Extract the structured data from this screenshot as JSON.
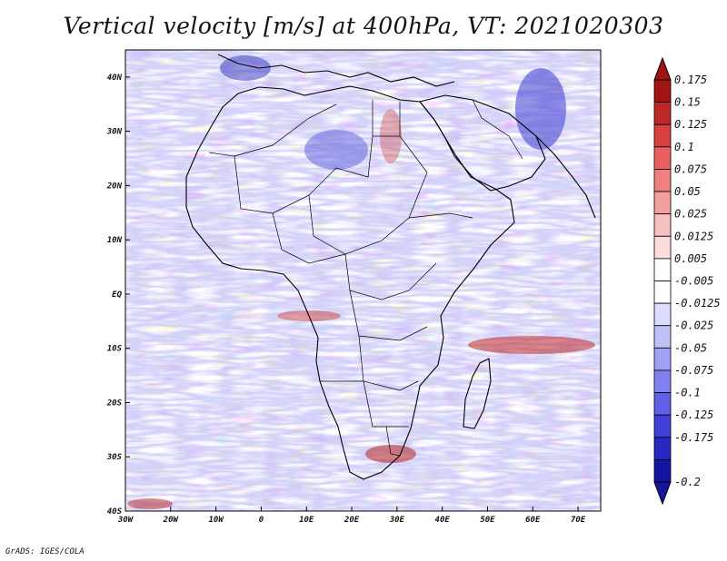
{
  "title": "Vertical velocity [m/s] at 400hPa, VT: 2021020303",
  "credit": "GrADS: IGES/COLA",
  "map": {
    "region": "Africa",
    "variable": "Vertical velocity",
    "units": "m/s",
    "level": "400hPa",
    "valid_time": "2021020303",
    "lon_range": [
      -30,
      75
    ],
    "lat_range": [
      -40,
      45
    ],
    "lon_ticks": [
      "30W",
      "20W",
      "10W",
      "0",
      "10E",
      "20E",
      "30E",
      "40E",
      "50E",
      "60E",
      "70E"
    ],
    "lat_ticks": [
      "40N",
      "30N",
      "20N",
      "10N",
      "EQ",
      "10S",
      "20S",
      "30S",
      "40S"
    ]
  },
  "colorbar": {
    "levels": [
      {
        "label": "0.175",
        "color": "#a01414"
      },
      {
        "label": "0.15",
        "color": "#c02828"
      },
      {
        "label": "0.125",
        "color": "#d84040"
      },
      {
        "label": "0.1",
        "color": "#e86060"
      },
      {
        "label": "0.075",
        "color": "#f08080"
      },
      {
        "label": "0.05",
        "color": "#f4a0a0"
      },
      {
        "label": "0.025",
        "color": "#f8c0c0"
      },
      {
        "label": "0.0125",
        "color": "#fcdcdc"
      },
      {
        "label": "0.005",
        "color": "#ffffff"
      },
      {
        "label": "-0.005",
        "color": "#ffffff"
      },
      {
        "label": "-0.0125",
        "color": "#dcdcfc"
      },
      {
        "label": "-0.025",
        "color": "#c0c0f8"
      },
      {
        "label": "-0.05",
        "color": "#a0a0f4"
      },
      {
        "label": "-0.075",
        "color": "#8080f0"
      },
      {
        "label": "-0.1",
        "color": "#6060e8"
      },
      {
        "label": "-0.125",
        "color": "#4040d8"
      },
      {
        "label": "-0.175",
        "color": "#2828c0"
      },
      {
        "label": "-0.2",
        "color": "#1414a0"
      }
    ],
    "top_arrow_color": "#a01414",
    "bottom_arrow_color": "#1414a0"
  }
}
